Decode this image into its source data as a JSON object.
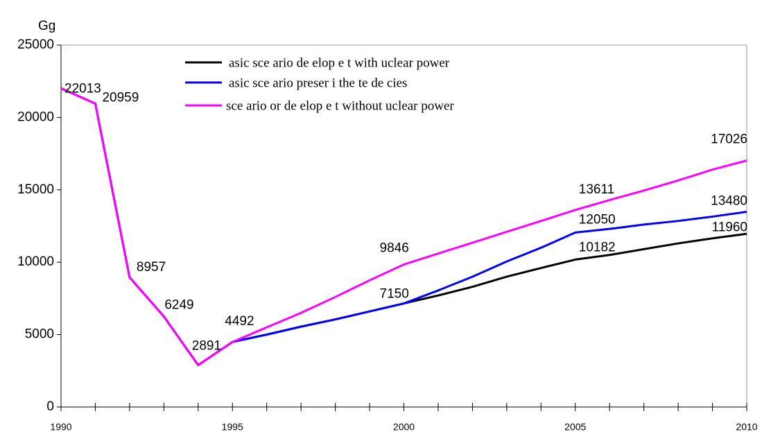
{
  "chart_data": {
    "type": "line",
    "y_label": "Gg",
    "x": [
      1990,
      1991,
      1992,
      1993,
      1994,
      1995,
      1996,
      1997,
      1998,
      1999,
      2000,
      2001,
      2002,
      2003,
      2004,
      2005,
      2006,
      2007,
      2008,
      2009,
      2010
    ],
    "series": [
      {
        "name": "asic sce ario de elop e t with uclear power",
        "color": "#000000",
        "values": [
          22013,
          20959,
          8957,
          6249,
          2891,
          4492,
          5000,
          5550,
          6050,
          6600,
          7150,
          7700,
          8300,
          9000,
          9600,
          10182,
          10500,
          10900,
          11300,
          11650,
          11960
        ]
      },
      {
        "name": "asic sce ario preser i the te de cies",
        "color": "#0000ff",
        "values": [
          22013,
          20959,
          8957,
          6249,
          2891,
          4492,
          5000,
          5550,
          6050,
          6600,
          7150,
          8050,
          9000,
          10050,
          11000,
          12050,
          12300,
          12600,
          12850,
          13150,
          13480
        ]
      },
      {
        "name": "sce ario or de elop e t without uclear power",
        "color": "#ff00ff",
        "values": [
          22013,
          20959,
          8957,
          6249,
          2891,
          4492,
          5500,
          6500,
          7600,
          8750,
          9846,
          10600,
          11350,
          12100,
          12850,
          13611,
          14300,
          14950,
          15650,
          16400,
          17026
        ]
      }
    ],
    "xlim": [
      1990,
      2010
    ],
    "xticks": [
      1990,
      1995,
      2000,
      2005,
      2010
    ],
    "ylim": [
      0,
      25000
    ],
    "yticks": [
      0,
      5000,
      10000,
      15000,
      20000,
      25000
    ],
    "legend": "top"
  }
}
